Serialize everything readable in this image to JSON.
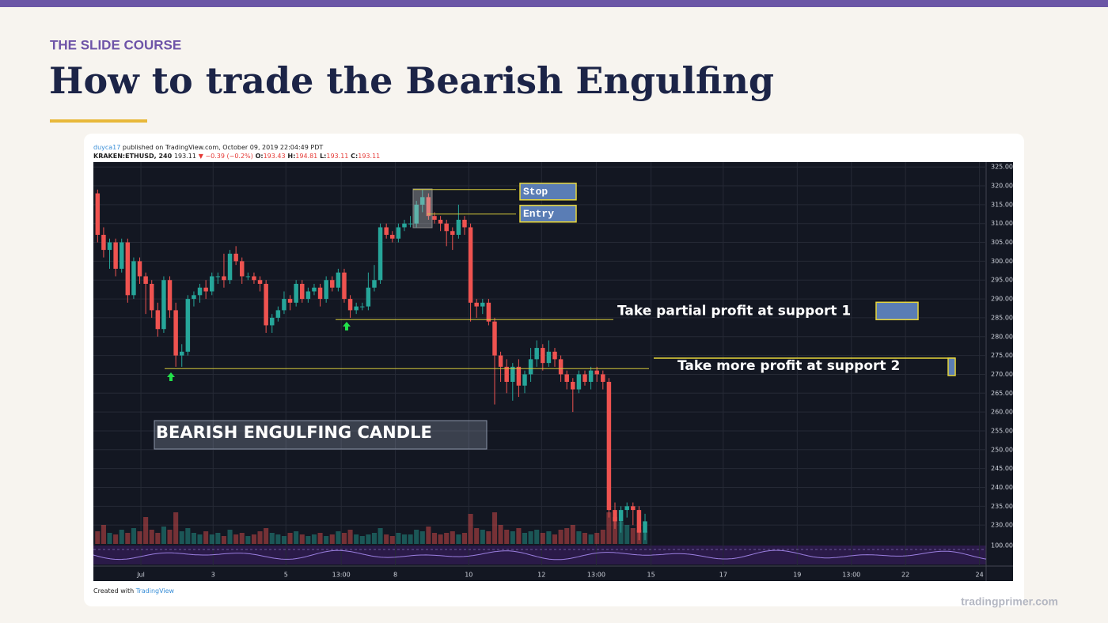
{
  "header": {
    "kicker": "THE SLIDE COURSE",
    "title": "How to trade the Bearish Engulfing",
    "site": "tradingprimer.com"
  },
  "publish": {
    "author": "duyca17",
    "text": "published on TradingView.com, October 09, 2019 22:04:49 PDT",
    "symbol": "KRAKEN:ETHUSD, 240",
    "last": "193.11",
    "change": "▼ −0.39 (−0.2%)",
    "o_label": "O:",
    "o": "193.43",
    "h_label": "H:",
    "h": "194.81",
    "l_label": "L:",
    "l": "193.11",
    "c_label": "C:",
    "c": "193.11"
  },
  "footer": {
    "created": "Created with",
    "brand": "TradingView"
  },
  "chart_data": {
    "type": "candlestick",
    "up_color": "#26a69a",
    "down_color": "#ef5350",
    "grid": true,
    "xlim": [
      -0.7,
      147.7
    ],
    "ylim": [
      225,
      326.3
    ],
    "xticks": [
      {
        "value": 7.2,
        "label": "Jul"
      },
      {
        "value": 19.2,
        "label": "3"
      },
      {
        "value": 31.3,
        "label": "5"
      },
      {
        "value": 40.5,
        "label": "13:00"
      },
      {
        "value": 49.5,
        "label": "8"
      },
      {
        "value": 61.7,
        "label": "10"
      },
      {
        "value": 73.8,
        "label": "12"
      },
      {
        "value": 82.9,
        "label": "13:00"
      },
      {
        "value": 92,
        "label": "15"
      },
      {
        "value": 104,
        "label": "17"
      },
      {
        "value": 116.3,
        "label": "19"
      },
      {
        "value": 125.3,
        "label": "13:00"
      },
      {
        "value": 134.3,
        "label": "22"
      },
      {
        "value": 146.6,
        "label": "24"
      }
    ],
    "yticks": [
      {
        "value": 325,
        "label": "325.00"
      },
      {
        "value": 320,
        "label": "320.00"
      },
      {
        "value": 315,
        "label": "315.00"
      },
      {
        "value": 310,
        "label": "310.00"
      },
      {
        "value": 305,
        "label": "305.00"
      },
      {
        "value": 300,
        "label": "300.00"
      },
      {
        "value": 295,
        "label": "295.00"
      },
      {
        "value": 290,
        "label": "290.00"
      },
      {
        "value": 285,
        "label": "285.00"
      },
      {
        "value": 280,
        "label": "280.00"
      },
      {
        "value": 275,
        "label": "275.00"
      },
      {
        "value": 270,
        "label": "270.00"
      },
      {
        "value": 265,
        "label": "265.00"
      },
      {
        "value": 260,
        "label": "260.00"
      },
      {
        "value": 255,
        "label": "255.00"
      },
      {
        "value": 250,
        "label": "250.00"
      },
      {
        "value": 245,
        "label": "245.00"
      },
      {
        "value": 240,
        "label": "240.00"
      },
      {
        "value": 235,
        "label": "235.00"
      },
      {
        "value": 230,
        "label": "230.00"
      }
    ],
    "osc_label": "100.00",
    "open": [
      318,
      307,
      303,
      305,
      298,
      305,
      291,
      300,
      296,
      294,
      287,
      282,
      295,
      287,
      275,
      276,
      290,
      291,
      293,
      292,
      296,
      296,
      295,
      302,
      300,
      296,
      296,
      295,
      294,
      283,
      285,
      287,
      290,
      289,
      294,
      290,
      292,
      293,
      290,
      295,
      293,
      297,
      290,
      287,
      288,
      288,
      293,
      295,
      309,
      307,
      306,
      309,
      310,
      310,
      315,
      317,
      312,
      311,
      310,
      308,
      307,
      311,
      309,
      289,
      288,
      289,
      284,
      275,
      272,
      268,
      272,
      267,
      270,
      274,
      277,
      273,
      276,
      274,
      270,
      268,
      266,
      270,
      268,
      271,
      270,
      268,
      234,
      231,
      234,
      235,
      234,
      228
    ],
    "high": [
      319,
      309,
      306,
      306,
      306,
      306,
      301,
      301,
      297,
      295,
      289,
      296,
      296,
      289,
      278,
      291,
      292,
      294,
      295,
      297,
      297,
      302,
      303,
      304,
      301,
      297,
      297,
      296,
      295,
      286,
      288,
      292,
      291,
      295,
      295,
      293,
      294,
      294,
      296,
      296,
      298,
      298,
      291,
      289,
      289,
      297,
      299,
      310,
      310,
      308,
      310,
      311,
      312,
      316,
      319,
      318,
      313,
      312,
      311,
      309,
      315,
      312,
      310,
      290,
      290,
      290,
      285,
      276,
      274,
      273,
      274,
      271,
      277,
      279,
      278,
      279,
      277,
      275,
      271,
      269,
      271,
      271,
      272,
      272,
      271,
      269,
      236,
      235,
      236,
      236,
      235,
      233
    ],
    "low": [
      305,
      301,
      298,
      296,
      297,
      289,
      290,
      294,
      286,
      285,
      280,
      281,
      285,
      272,
      272,
      275,
      288,
      289,
      290,
      291,
      294,
      293,
      294,
      299,
      294,
      295,
      294,
      292,
      281,
      281,
      284,
      286,
      287,
      288,
      289,
      289,
      291,
      288,
      289,
      292,
      292,
      289,
      285,
      286,
      287,
      287,
      292,
      294,
      306,
      305,
      305,
      308,
      309,
      309,
      313,
      311,
      310,
      308,
      304,
      303,
      306,
      307,
      284,
      285,
      286,
      283,
      262,
      268,
      265,
      263,
      264,
      265,
      268,
      272,
      271,
      272,
      272,
      268,
      266,
      260,
      265,
      267,
      266,
      268,
      266,
      232,
      229,
      228,
      232,
      230,
      226,
      226
    ],
    "close": [
      307,
      303,
      305,
      298,
      305,
      291,
      300,
      296,
      294,
      287,
      282,
      295,
      287,
      275,
      276,
      290,
      291,
      293,
      292,
      296,
      296,
      295,
      302,
      300,
      296,
      296,
      295,
      294,
      283,
      285,
      287,
      290,
      289,
      294,
      290,
      292,
      293,
      290,
      295,
      293,
      297,
      290,
      287,
      288,
      288,
      293,
      295,
      309,
      307,
      306,
      309,
      310,
      310,
      315,
      317,
      312,
      311,
      310,
      308,
      307,
      311,
      309,
      289,
      288,
      289,
      284,
      275,
      272,
      268,
      272,
      267,
      270,
      274,
      277,
      273,
      276,
      274,
      270,
      268,
      266,
      270,
      268,
      271,
      270,
      268,
      234,
      231,
      234,
      235,
      234,
      228,
      231
    ],
    "volume_lim": [
      0,
      60
    ],
    "volume": [
      8,
      12,
      7,
      6,
      9,
      7,
      10,
      8,
      17,
      9,
      7,
      11,
      9,
      20,
      8,
      10,
      7,
      6,
      8,
      6,
      7,
      5,
      9,
      6,
      7,
      5,
      6,
      8,
      10,
      7,
      6,
      5,
      7,
      8,
      6,
      5,
      6,
      7,
      5,
      6,
      8,
      7,
      9,
      6,
      5,
      6,
      7,
      10,
      6,
      5,
      7,
      6,
      6,
      9,
      8,
      11,
      7,
      6,
      7,
      8,
      6,
      7,
      19,
      10,
      9,
      8,
      20,
      12,
      9,
      8,
      10,
      7,
      8,
      9,
      7,
      8,
      6,
      9,
      10,
      12,
      8,
      7,
      6,
      7,
      9,
      20,
      17,
      14,
      12,
      10,
      9,
      8
    ],
    "annotations": [
      {
        "text": "Stop",
        "price": 319
      },
      {
        "text": "Entry",
        "price": 312.5
      },
      {
        "text": "Take partial profit at support 1",
        "price": 284.5
      },
      {
        "text": "Take more profit at support 2",
        "price": 271.5
      }
    ],
    "callout": "BEARISH ENGULFING CANDLE"
  }
}
